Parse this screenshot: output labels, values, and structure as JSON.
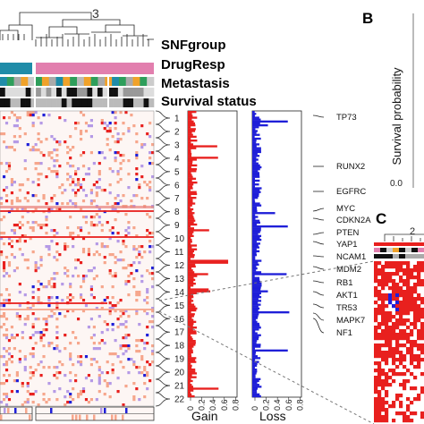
{
  "cluster_number": "3",
  "annotation_labels": [
    "SNFgroup",
    "DrugResp",
    "Metastasis",
    "Survival status"
  ],
  "chromosomes": [
    "1",
    "2",
    "3",
    "4",
    "5",
    "6",
    "7",
    "8",
    "9",
    "10",
    "11",
    "12",
    "13",
    "14",
    "15",
    "16",
    "17",
    "18",
    "19",
    "20",
    "21",
    "22"
  ],
  "genes": [
    "TP73",
    "RUNX2",
    "EGFRC",
    "MYC",
    "CDKN2A",
    "PTEN",
    "YAP1",
    "NCAM1",
    "MDM2",
    "RB1",
    "AKT1",
    "TR53",
    "MAPK7",
    "NF1"
  ],
  "gain_panel": {
    "axis_title": "Gain",
    "ticks": [
      "0",
      "0.2",
      "0.4",
      "0.6",
      "0.8"
    ],
    "color": "#e8201e"
  },
  "loss_panel": {
    "axis_title": "Loss",
    "ticks": [
      "0",
      "0.2",
      "0.4",
      "0.6",
      "0.8"
    ],
    "color": "#1f1fd8"
  },
  "panel_b": {
    "letter": "B",
    "ylabel": "Survival probability",
    "ticks": [
      "0.0"
    ]
  },
  "panel_c": {
    "letter": "C",
    "cluster_number": "2"
  },
  "colors": {
    "teal": "#1f8ca8",
    "pink": "#e27fae",
    "orange": "#f0a22a",
    "green": "#2e9e5b",
    "gain_strong": "#e8201e",
    "gain_light": "#f6a68c",
    "loss_light": "#b59ae6",
    "loss_strong": "#1f1fd8"
  }
}
